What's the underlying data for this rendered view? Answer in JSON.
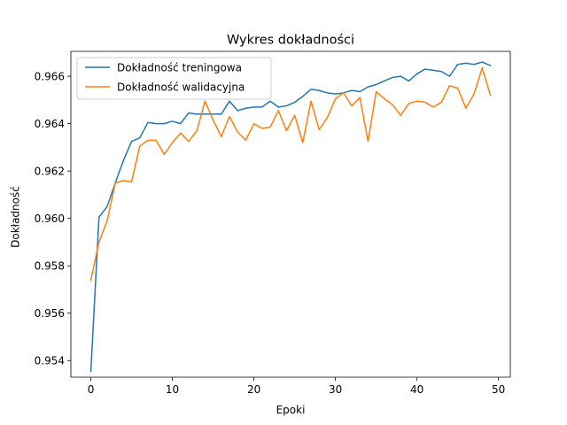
{
  "chart_data": {
    "type": "line",
    "title": "Wykres dokładności",
    "xlabel": "Epoki",
    "ylabel": "Dokładność",
    "xlim": [
      -2.45,
      51.45
    ],
    "ylim": [
      0.9533,
      0.96705
    ],
    "xticks": [
      0,
      10,
      20,
      30,
      40,
      50
    ],
    "yticks": [
      0.954,
      0.956,
      0.958,
      0.96,
      0.962,
      0.964,
      0.966
    ],
    "ytick_labels": [
      "0.954",
      "0.956",
      "0.958",
      "0.960",
      "0.962",
      "0.964",
      "0.966"
    ],
    "grid": false,
    "legend_position": "upper-left",
    "x": [
      0,
      1,
      2,
      3,
      4,
      5,
      6,
      7,
      8,
      9,
      10,
      11,
      12,
      13,
      14,
      15,
      16,
      17,
      18,
      19,
      20,
      21,
      22,
      23,
      24,
      25,
      26,
      27,
      28,
      29,
      30,
      31,
      32,
      33,
      34,
      35,
      36,
      37,
      38,
      39,
      40,
      41,
      42,
      43,
      44,
      45,
      46,
      47,
      48,
      49
    ],
    "series": [
      {
        "name": "Dokładność treningowa",
        "color": "#1f77b4",
        "values": [
          0.95355,
          0.96005,
          0.9605,
          0.9615,
          0.96245,
          0.96325,
          0.9634,
          0.96405,
          0.964,
          0.964,
          0.9641,
          0.964,
          0.96445,
          0.9644,
          0.9644,
          0.9644,
          0.9644,
          0.96495,
          0.96455,
          0.96465,
          0.9647,
          0.9647,
          0.96495,
          0.9647,
          0.96475,
          0.9649,
          0.96515,
          0.96545,
          0.9654,
          0.9653,
          0.96525,
          0.9653,
          0.9654,
          0.96535,
          0.96555,
          0.96565,
          0.9658,
          0.96595,
          0.966,
          0.9658,
          0.9661,
          0.9663,
          0.96625,
          0.9662,
          0.966,
          0.9665,
          0.96655,
          0.9665,
          0.9666,
          0.96645
        ]
      },
      {
        "name": "Dokładność walidacyjna",
        "color": "#ff7f0e",
        "values": [
          0.9574,
          0.959,
          0.9599,
          0.9615,
          0.9616,
          0.96155,
          0.96305,
          0.9633,
          0.9633,
          0.9627,
          0.9632,
          0.9636,
          0.96325,
          0.9637,
          0.96495,
          0.96415,
          0.96345,
          0.9643,
          0.96365,
          0.9633,
          0.964,
          0.9638,
          0.96385,
          0.96455,
          0.9637,
          0.96435,
          0.9632,
          0.96495,
          0.96375,
          0.96425,
          0.96505,
          0.9653,
          0.96475,
          0.9651,
          0.96325,
          0.96535,
          0.96505,
          0.9648,
          0.96435,
          0.96485,
          0.96495,
          0.9649,
          0.9647,
          0.9649,
          0.9656,
          0.9655,
          0.96465,
          0.96525,
          0.96635,
          0.9652
        ]
      }
    ]
  }
}
